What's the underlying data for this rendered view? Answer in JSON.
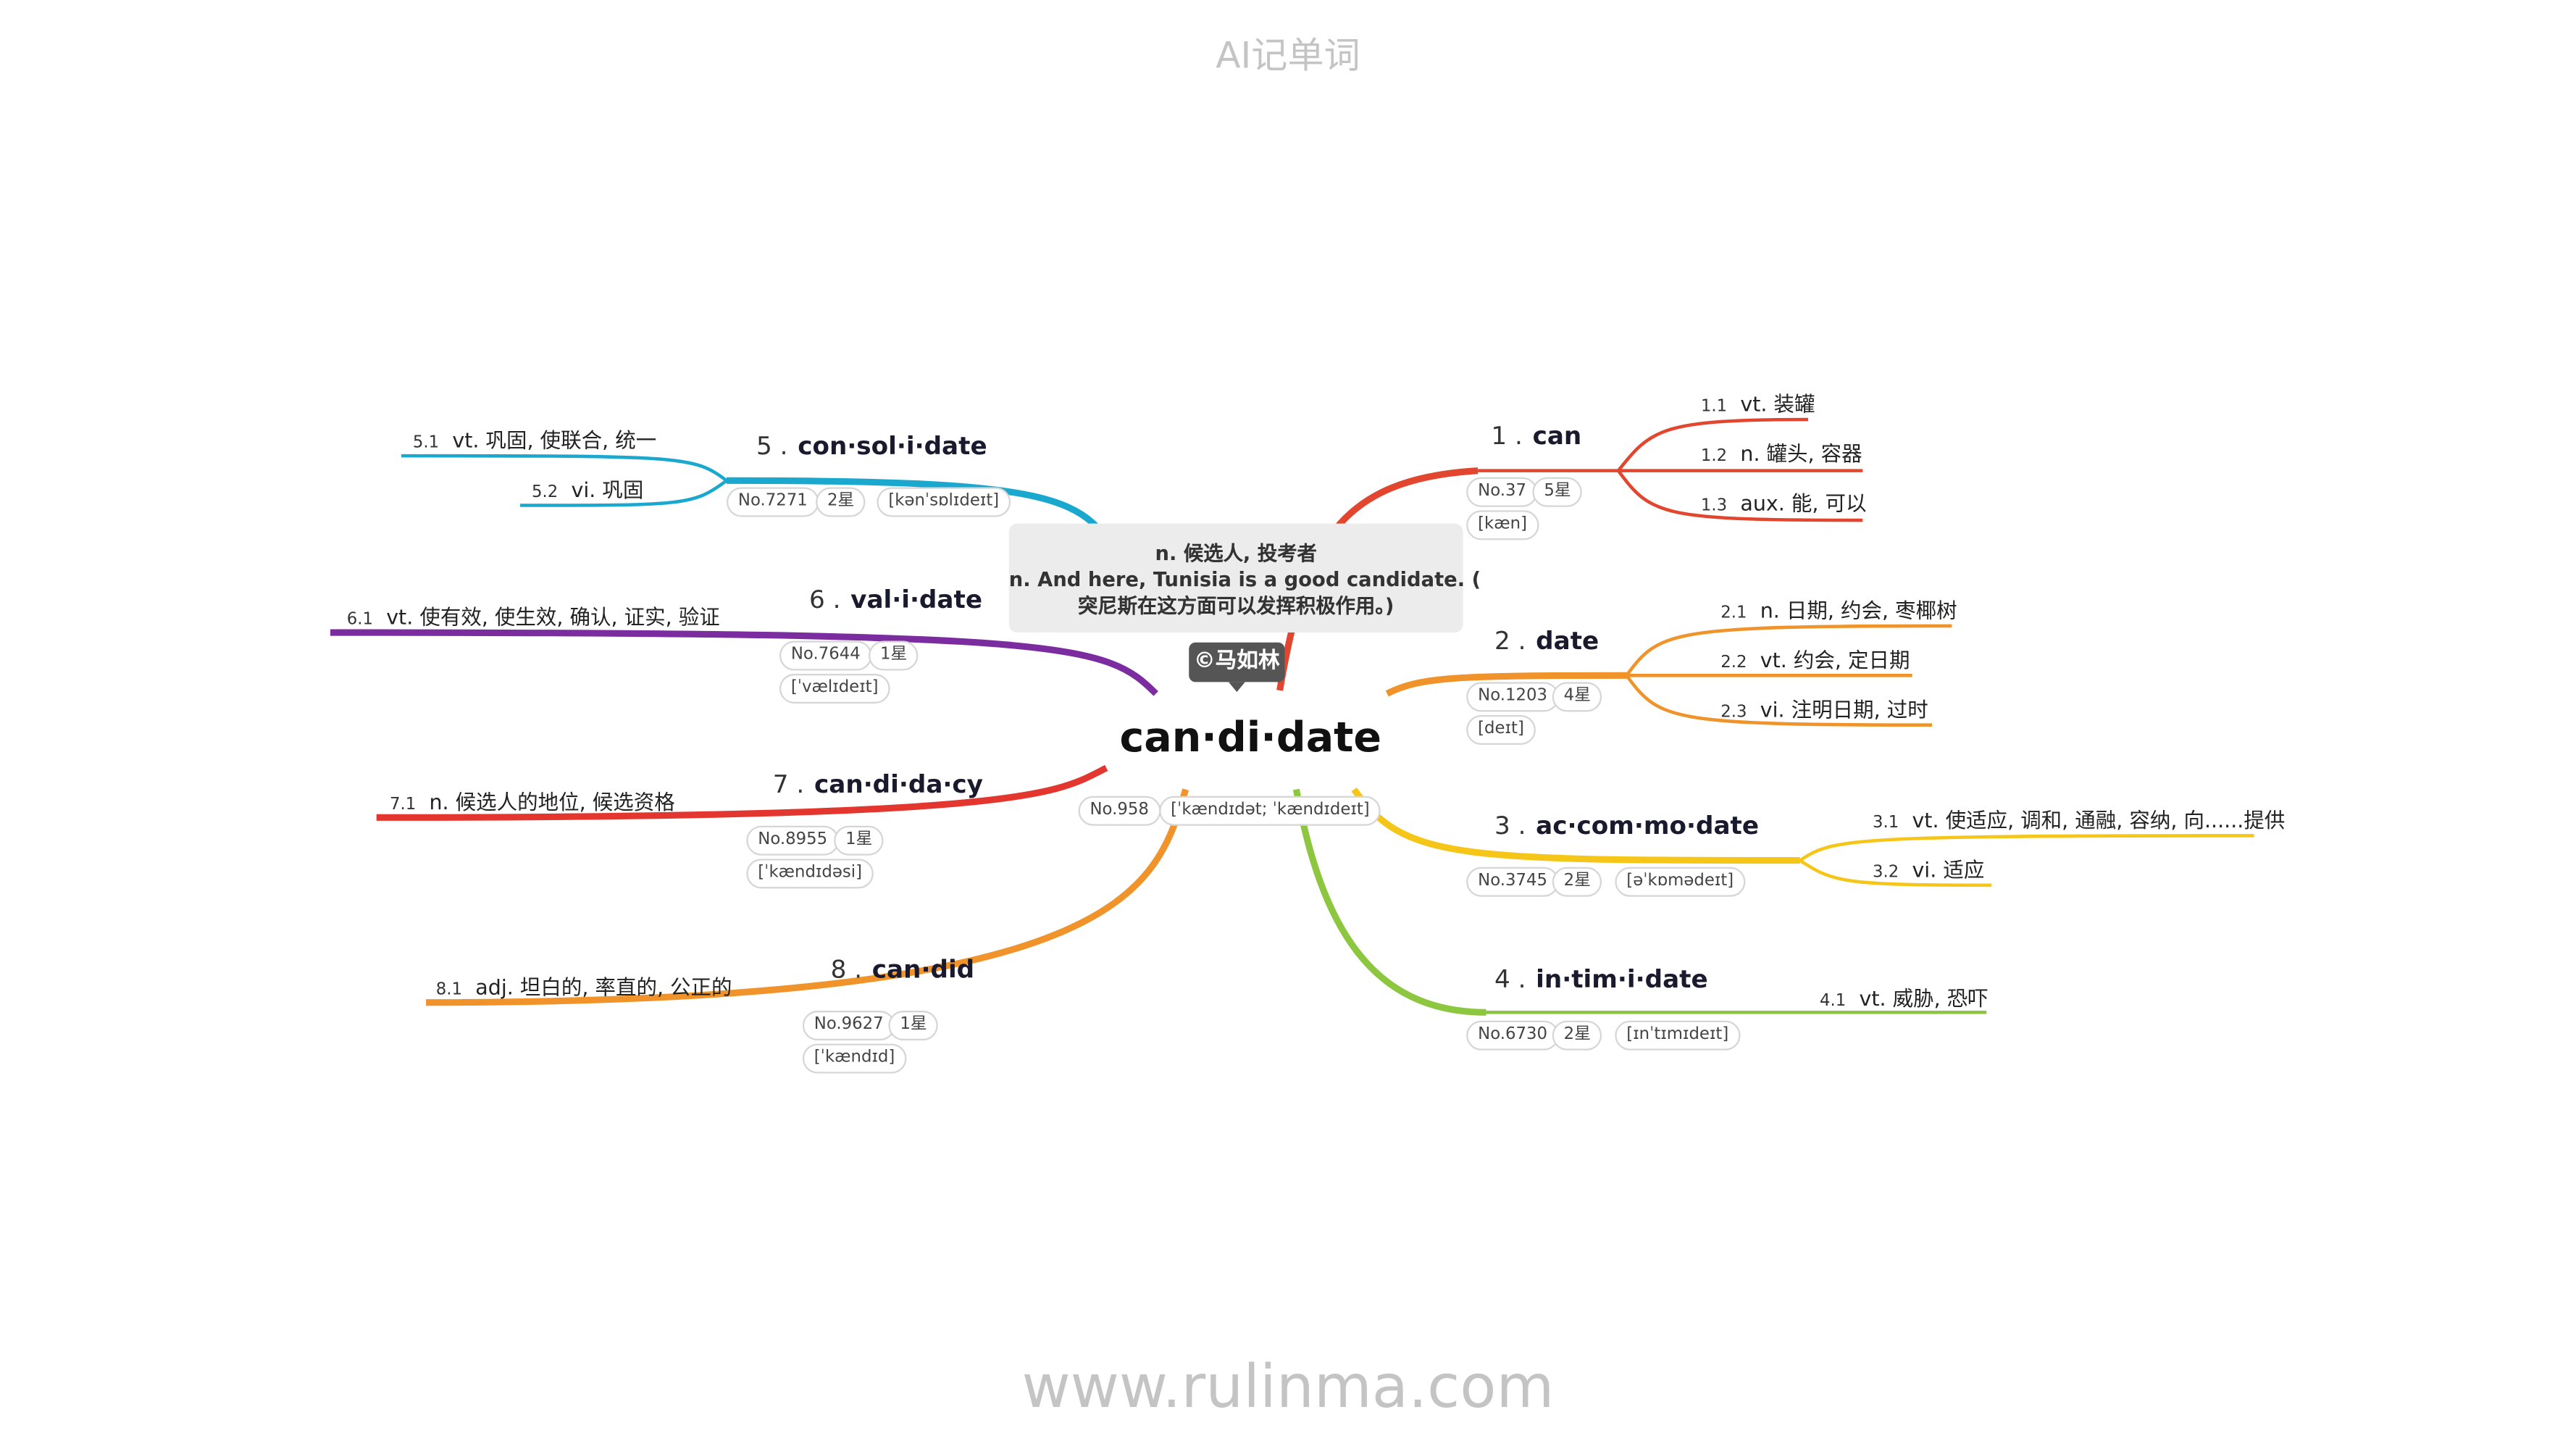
{
  "header": "AI记单词",
  "footer": "www.rulinma.com",
  "center": {
    "word": "can·di·date",
    "no": "No.958",
    "phonetic": "[ˈkændɪdət; ˈkændɪdeɪt]",
    "copyright": "©马如林",
    "tooltip": {
      "line1": "n. 候选人, 投考者",
      "line2": "n. And here, Tunisia is a good candidate. (",
      "line3": "突尼斯在这方面可以发挥积极作用。)"
    }
  },
  "branches": [
    {
      "num": "1 .",
      "word": "can",
      "no": "No.37",
      "stars": "5星",
      "phonetic": "[kæn]",
      "color": "#e2462f",
      "senses": [
        {
          "num": "1.1",
          "text": "vt. 装罐"
        },
        {
          "num": "1.2",
          "text": "n. 罐头, 容器"
        },
        {
          "num": "1.3",
          "text": "aux. 能, 可以"
        }
      ]
    },
    {
      "num": "2 .",
      "word": "date",
      "no": "No.1203",
      "stars": "4星",
      "phonetic": "[deɪt]",
      "color": "#f0932b",
      "senses": [
        {
          "num": "2.1",
          "text": "n. 日期, 约会, 枣椰树"
        },
        {
          "num": "2.2",
          "text": "vt. 约会, 定日期"
        },
        {
          "num": "2.3",
          "text": "vi. 注明日期, 过时"
        }
      ]
    },
    {
      "num": "3 .",
      "word": "ac·com·mo·date",
      "no": "No.3745",
      "stars": "2星",
      "phonetic": "[əˈkɒmədeɪt]",
      "color": "#f5c518",
      "senses": [
        {
          "num": "3.1",
          "text": "vt. 使适应, 调和, 通融, 容纳, 向......提供"
        },
        {
          "num": "3.2",
          "text": "vi. 适应"
        }
      ]
    },
    {
      "num": "4 .",
      "word": "in·tim·i·date",
      "no": "No.6730",
      "stars": "2星",
      "phonetic": "[ɪnˈtɪmɪdeɪt]",
      "color": "#8dc63f",
      "senses": [
        {
          "num": "4.1",
          "text": "vt. 威胁, 恐吓"
        }
      ]
    },
    {
      "num": "5 .",
      "word": "con·sol·i·date",
      "no": "No.7271",
      "stars": "2星",
      "phonetic": "[kənˈsɒlɪdeɪt]",
      "color": "#1aa8cf",
      "senses": [
        {
          "num": "5.1",
          "text": "vt. 巩固, 使联合, 统一"
        },
        {
          "num": "5.2",
          "text": "vi. 巩固"
        }
      ]
    },
    {
      "num": "6 .",
      "word": "val·i·date",
      "no": "No.7644",
      "stars": "1星",
      "phonetic": "[ˈvælɪdeɪt]",
      "color": "#7b2c9e",
      "senses": [
        {
          "num": "6.1",
          "text": "vt. 使有效, 使生效, 确认, 证实, 验证"
        }
      ]
    },
    {
      "num": "7 .",
      "word": "can·di·da·cy",
      "no": "No.8955",
      "stars": "1星",
      "phonetic": "[ˈkændɪdəsi]",
      "color": "#e2362f",
      "senses": [
        {
          "num": "7.1",
          "text": "n. 候选人的地位, 候选资格"
        }
      ]
    },
    {
      "num": "8 .",
      "word": "can·did",
      "no": "No.9627",
      "stars": "1星",
      "phonetic": "[ˈkændɪd]",
      "color": "#f0932b",
      "senses": [
        {
          "num": "8.1",
          "text": "adj. 坦白的, 率直的, 公正的"
        }
      ]
    }
  ]
}
